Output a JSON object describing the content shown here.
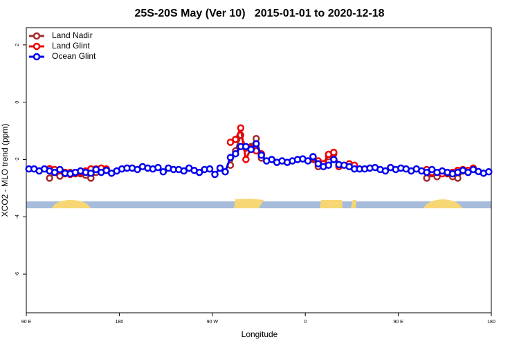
{
  "chart_data": {
    "type": "line",
    "title": "25S-20S May (Ver 10)   2015-01-01 to 2020-12-18",
    "x_label": "Longitude",
    "y_label": "XCO2 - MLO trend (ppm)",
    "xlim": [
      90,
      540
    ],
    "ylim": [
      -7.35,
      2.6
    ],
    "xticks": [
      {
        "value": 90,
        "label": "90 E"
      },
      {
        "value": 180,
        "label": "180"
      },
      {
        "value": 270,
        "label": "90 W"
      },
      {
        "value": 360,
        "label": "0"
      },
      {
        "value": 450,
        "label": "90 E"
      },
      {
        "value": 540,
        "label": "180"
      }
    ],
    "yticks": [
      2,
      0,
      -2,
      -4,
      -6
    ],
    "legend": "top-left",
    "x": [
      92.5,
      97.5,
      102.5,
      107.5,
      112.5,
      117.5,
      122.5,
      127.5,
      132.5,
      137.5,
      142.5,
      147.5,
      152.5,
      157.5,
      162.5,
      167.5,
      172.5,
      177.5,
      182.5,
      187.5,
      192.5,
      197.5,
      202.5,
      207.5,
      212.5,
      217.5,
      222.5,
      227.5,
      232.5,
      237.5,
      242.5,
      247.5,
      252.5,
      257.5,
      262.5,
      267.5,
      272.5,
      277.5,
      282.5,
      287.5,
      292.5,
      297.5,
      302.5,
      307.5,
      312.5,
      317.5,
      322.5,
      327.5,
      332.5,
      337.5,
      342.5,
      347.5,
      352.5,
      357.5,
      362.5,
      367.5,
      372.5,
      377.5,
      382.5,
      387.5,
      392.5,
      397.5,
      402.5,
      407.5,
      412.5,
      417.5,
      422.5,
      427.5,
      432.5,
      437.5,
      442.5,
      447.5,
      452.5,
      457.5,
      462.5,
      467.5,
      472.5,
      477.5,
      482.5,
      487.5,
      492.5,
      497.5,
      502.5,
      507.5,
      512.5,
      517.5,
      522.5,
      527.5,
      532.5,
      537.5
    ],
    "series": [
      {
        "name": "Land Nadir",
        "color": "#a52a2a",
        "values": [
          null,
          null,
          null,
          null,
          -2.65,
          -2.45,
          -2.58,
          -2.5,
          -2.45,
          -2.5,
          -2.5,
          -2.55,
          -2.65,
          -2.45,
          null,
          null,
          null,
          null,
          null,
          null,
          null,
          null,
          null,
          null,
          null,
          null,
          null,
          null,
          null,
          null,
          null,
          null,
          null,
          null,
          null,
          null,
          null,
          null,
          null,
          -2.2,
          -1.7,
          -1.15,
          -1.6,
          -1.55,
          -1.27,
          -1.95,
          null,
          null,
          null,
          null,
          null,
          null,
          null,
          null,
          null,
          -2.0,
          -2.25,
          -2.2,
          -1.9,
          -1.8,
          -2.2,
          null,
          null,
          null,
          null,
          null,
          null,
          null,
          null,
          null,
          null,
          null,
          null,
          null,
          null,
          null,
          null,
          -2.65,
          -2.5,
          -2.6,
          -2.45,
          -2.5,
          -2.6,
          -2.65,
          -2.4,
          null,
          null,
          null,
          null,
          null
        ]
      },
      {
        "name": "Land Glint",
        "color": "#ee0000",
        "values": [
          null,
          null,
          null,
          null,
          -2.32,
          -2.35,
          -2.38,
          -2.45,
          -2.52,
          -2.48,
          -2.45,
          -2.4,
          -2.33,
          -2.33,
          -2.3,
          -2.33,
          null,
          null,
          null,
          null,
          null,
          null,
          null,
          null,
          null,
          null,
          null,
          null,
          null,
          null,
          null,
          null,
          null,
          null,
          null,
          null,
          null,
          null,
          null,
          -1.4,
          -1.3,
          -0.9,
          -2.0,
          -1.6,
          -1.7,
          -1.8,
          null,
          null,
          null,
          null,
          null,
          null,
          null,
          null,
          null,
          -1.95,
          -2.05,
          -2.15,
          -1.82,
          -1.75,
          -2.25,
          null,
          -2.15,
          -2.2,
          null,
          null,
          null,
          null,
          null,
          null,
          null,
          null,
          null,
          null,
          null,
          null,
          null,
          -2.35,
          -2.45,
          -2.45,
          -2.5,
          -2.48,
          -2.45,
          -2.38,
          -2.35,
          -2.38,
          -2.3,
          null,
          null,
          null
        ]
      },
      {
        "name": "Ocean Glint",
        "color": "#0000ee",
        "values": [
          -2.33,
          -2.33,
          -2.4,
          -2.33,
          -2.4,
          -2.45,
          -2.35,
          -2.48,
          -2.5,
          -2.45,
          -2.4,
          -2.45,
          -2.48,
          -2.35,
          -2.45,
          -2.38,
          -2.48,
          -2.4,
          -2.33,
          -2.3,
          -2.3,
          -2.35,
          -2.25,
          -2.3,
          -2.33,
          -2.28,
          -2.43,
          -2.3,
          -2.35,
          -2.35,
          -2.4,
          -2.3,
          -2.38,
          -2.45,
          -2.35,
          -2.33,
          -2.52,
          -2.3,
          -2.43,
          -1.93,
          -1.8,
          -1.55,
          -1.55,
          -1.65,
          -1.45,
          -1.85,
          -2.05,
          -2.0,
          -2.1,
          -2.05,
          -2.1,
          -2.05,
          -2.0,
          -1.98,
          -2.05,
          -1.9,
          -2.15,
          -2.25,
          -2.2,
          -2.0,
          -2.18,
          -2.2,
          -2.25,
          -2.33,
          -2.33,
          -2.33,
          -2.3,
          -2.28,
          -2.35,
          -2.4,
          -2.28,
          -2.35,
          -2.3,
          -2.33,
          -2.4,
          -2.33,
          -2.4,
          -2.45,
          -2.35,
          -2.45,
          -2.4,
          -2.45,
          -2.5,
          -2.45,
          -2.38,
          -2.45,
          -2.35,
          -2.42,
          -2.48,
          -2.43
        ]
      }
    ]
  }
}
